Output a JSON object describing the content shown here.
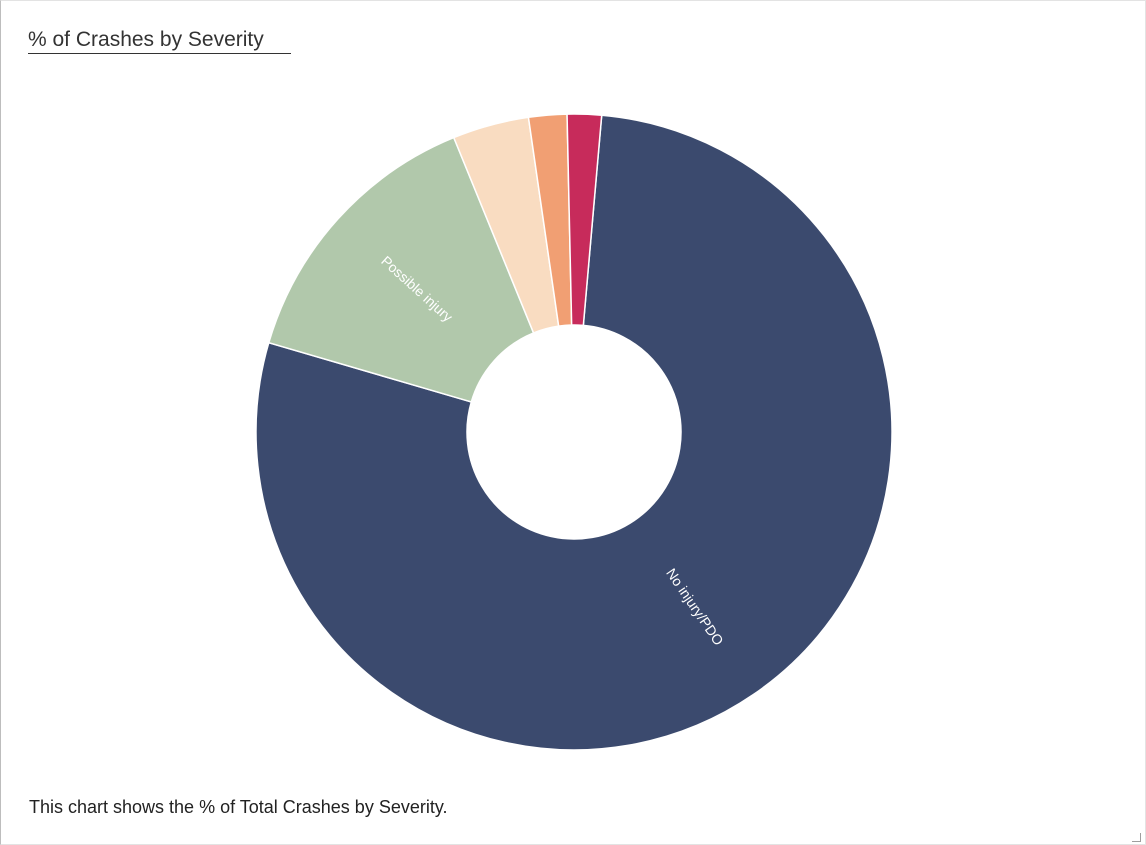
{
  "title": "% of Crashes by Severity",
  "caption": "This chart shows the % of Total Crashes by Severity.",
  "chart_data": {
    "type": "pie",
    "donut": true,
    "categories": [
      "No injury/PDO",
      "Possible injury",
      "",
      "",
      ""
    ],
    "values": [
      76.5,
      14.0,
      3.8,
      1.9,
      1.7
    ],
    "slice_labels_shown": [
      true,
      true,
      false,
      false,
      false
    ],
    "colors": [
      "#3b4a6e",
      "#b1c8ab",
      "#f9dcc1",
      "#f19f73",
      "#c72b5b"
    ],
    "legend": "none"
  }
}
